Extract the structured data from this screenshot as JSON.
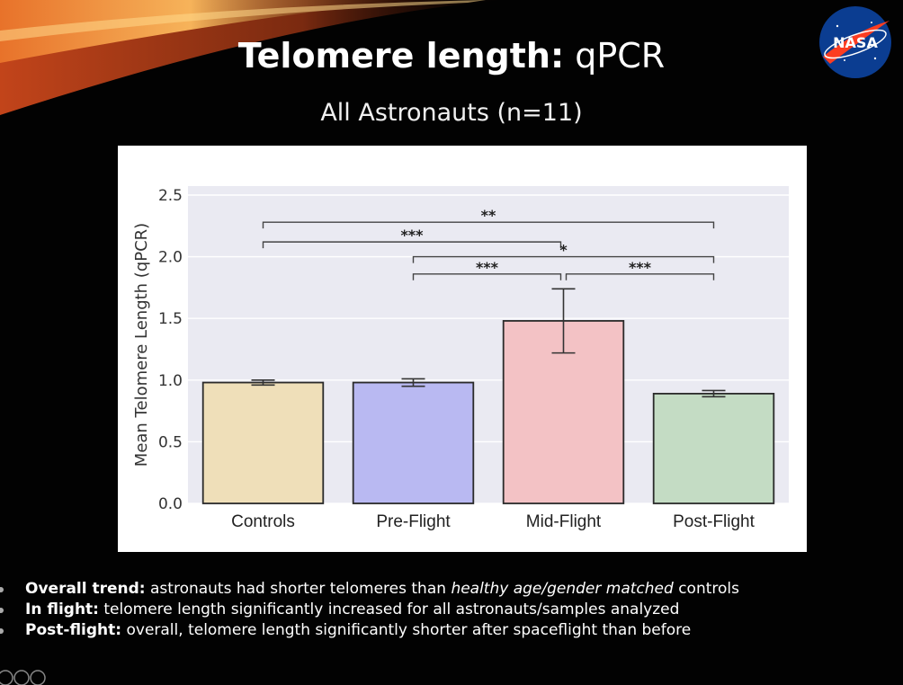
{
  "slide": {
    "title_bold": "Telomere length:",
    "title_light": "qPCR",
    "subtitle": "All Astronauts (n=11)",
    "logo_text": "NASA",
    "colors": {
      "background": "#000000",
      "swoosh": [
        "#e8722a",
        "#f6b35a",
        "#7a2a10"
      ]
    }
  },
  "chart_data": {
    "type": "bar",
    "categories": [
      "Controls",
      "Pre-Flight",
      "Mid-Flight",
      "Post-Flight"
    ],
    "values": [
      0.98,
      0.98,
      1.48,
      0.89
    ],
    "errors": [
      0.02,
      0.03,
      0.26,
      0.025
    ],
    "colors": [
      "#efdfb9",
      "#b9b9f2",
      "#f3c2c5",
      "#c4dcc4"
    ],
    "ylabel": "Mean Telomere Length (qPCR)",
    "xlabel": "",
    "ylim": [
      0,
      2.5
    ],
    "yticks": [
      "0.0",
      "0.5",
      "1.0",
      "1.5",
      "2.0",
      "2.5"
    ],
    "grid": true,
    "significance": [
      {
        "from": 0,
        "to": 3,
        "label": "**"
      },
      {
        "from": 0,
        "to": 2,
        "label": "***"
      },
      {
        "from": 1,
        "to": 3,
        "label": "*"
      },
      {
        "from": 1,
        "to": 2,
        "label": "***"
      },
      {
        "from": 2,
        "to": 3,
        "label": "***"
      }
    ]
  },
  "bullets": [
    {
      "lead": "Overall trend:",
      "text": " astronauts had shorter telomeres than ",
      "em": "healthy age/gender matched",
      "tail": " controls"
    },
    {
      "lead": "In flight:",
      "text": " telomere length significantly increased for all astronauts/samples analyzed",
      "em": "",
      "tail": ""
    },
    {
      "lead": "Post-flight:",
      "text": " overall, telomere length significantly shorter after spaceflight than before",
      "em": "",
      "tail": ""
    }
  ],
  "footer": {
    "license_icons": "cc-license-icons"
  }
}
